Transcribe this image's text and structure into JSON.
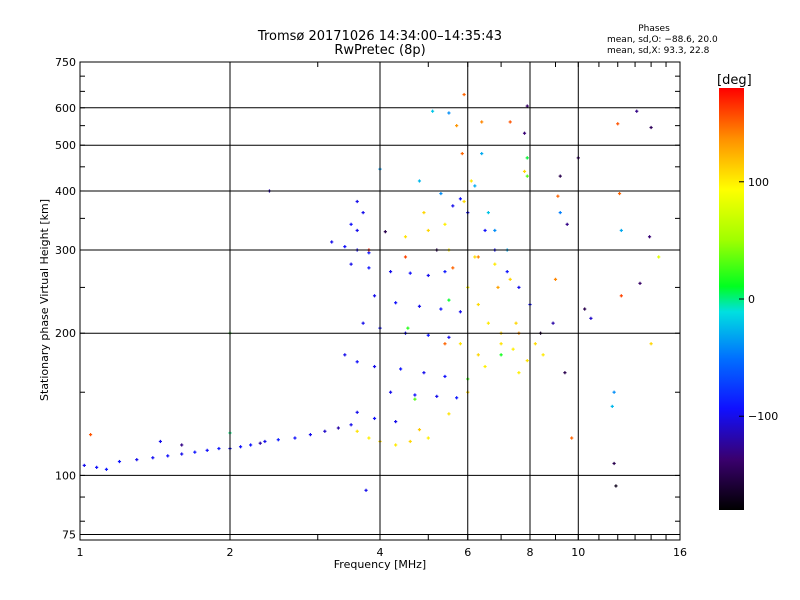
{
  "chart_data": {
    "type": "scatter",
    "title": "Tromsø 20171026 14:34:00–14:35:43",
    "subtitle": "RwPretec (8p)",
    "xlabel": "Frequency [MHz]",
    "ylabel": "Stationary phase Virtual Height [km]",
    "x_scale": "log",
    "y_scale": "log",
    "xlim": [
      1,
      16
    ],
    "ylim": [
      73,
      750
    ],
    "x_ticks": [
      1,
      2,
      4,
      6,
      8,
      10,
      16
    ],
    "y_ticks": [
      75,
      100,
      200,
      300,
      400,
      500,
      600,
      750
    ],
    "grid": true,
    "stats": {
      "header": "Phases",
      "line1": "mean, sd,O: −88.6, 20.0",
      "line2": "mean, sd,X:  93.3, 22.8"
    },
    "colorbar": {
      "label": "[deg]",
      "range": [
        -180,
        180
      ],
      "ticks": [
        {
          "value": 100,
          "label": "100"
        },
        {
          "value": 0,
          "label": "0"
        },
        {
          "value": -100,
          "label": "−100"
        }
      ]
    },
    "series": [
      {
        "points": [
          [
            1.02,
            105,
            -100
          ],
          [
            1.08,
            104,
            -95
          ],
          [
            1.13,
            103,
            -90
          ],
          [
            1.2,
            107,
            -92
          ],
          [
            1.3,
            108,
            -100
          ],
          [
            1.4,
            109,
            -98
          ],
          [
            1.5,
            110,
            -95
          ],
          [
            1.6,
            111,
            -100
          ],
          [
            1.7,
            112,
            -92
          ],
          [
            1.8,
            113,
            -95
          ],
          [
            1.9,
            114,
            -90
          ],
          [
            2.0,
            114,
            -100
          ],
          [
            2.1,
            115,
            -95
          ],
          [
            2.2,
            116,
            -92
          ],
          [
            2.35,
            118,
            -100
          ],
          [
            2.5,
            119,
            -88
          ],
          [
            2.7,
            120,
            -95
          ],
          [
            2.9,
            122,
            -100
          ],
          [
            3.1,
            124,
            -110
          ],
          [
            3.3,
            126,
            -120
          ],
          [
            3.5,
            128,
            -100
          ],
          [
            1.45,
            118,
            -100
          ],
          [
            1.6,
            116,
            -130
          ],
          [
            2.3,
            117,
            -120
          ]
        ]
      },
      {
        "points": [
          [
            3.2,
            312,
            -100
          ],
          [
            3.4,
            305,
            -95
          ],
          [
            3.6,
            300,
            -100
          ],
          [
            3.8,
            296,
            -90
          ],
          [
            3.5,
            340,
            -95
          ],
          [
            3.6,
            380,
            -100
          ],
          [
            3.5,
            280,
            -100
          ],
          [
            3.8,
            275,
            -92
          ],
          [
            4.2,
            270,
            -100
          ],
          [
            4.6,
            268,
            -95
          ],
          [
            5.0,
            265,
            -100
          ],
          [
            5.4,
            270,
            -90
          ],
          [
            3.9,
            240,
            -100
          ],
          [
            4.3,
            232,
            -95
          ],
          [
            4.8,
            228,
            -100
          ],
          [
            5.3,
            225,
            -92
          ],
          [
            5.8,
            222,
            -100
          ],
          [
            3.7,
            210,
            -100
          ],
          [
            4.0,
            205,
            -95
          ],
          [
            4.5,
            200,
            -100
          ],
          [
            5.0,
            198,
            -90
          ],
          [
            5.5,
            196,
            -100
          ],
          [
            3.4,
            180,
            -100
          ],
          [
            3.6,
            174,
            -95
          ],
          [
            3.9,
            170,
            -100
          ],
          [
            4.4,
            168,
            -92
          ],
          [
            4.9,
            165,
            -100
          ],
          [
            5.4,
            162,
            -95
          ],
          [
            4.2,
            150,
            -100
          ],
          [
            4.7,
            148,
            -95
          ],
          [
            5.2,
            147,
            -100
          ],
          [
            5.7,
            146,
            -90
          ],
          [
            3.6,
            136,
            -100
          ],
          [
            3.9,
            132,
            -95
          ],
          [
            4.3,
            130,
            -100
          ],
          [
            5.6,
            372,
            -100
          ],
          [
            5.8,
            385,
            -95
          ],
          [
            6.0,
            360,
            -100
          ],
          [
            6.5,
            330,
            -95
          ],
          [
            6.8,
            300,
            -100
          ],
          [
            7.2,
            270,
            -92
          ],
          [
            7.6,
            250,
            -100
          ],
          [
            8.0,
            230,
            -95
          ],
          [
            3.6,
            330,
            -100
          ],
          [
            3.7,
            360,
            -100
          ],
          [
            4.1,
            328,
            -150
          ],
          [
            5.2,
            300,
            -150
          ]
        ]
      },
      {
        "points": [
          [
            3.6,
            124,
            105
          ],
          [
            3.8,
            120,
            100
          ],
          [
            4.0,
            118,
            108
          ],
          [
            4.3,
            116,
            102
          ],
          [
            4.6,
            118,
            110
          ],
          [
            5.0,
            120,
            100
          ],
          [
            4.8,
            125,
            115
          ],
          [
            5.5,
            135,
            105
          ],
          [
            6.0,
            150,
            110
          ],
          [
            6.5,
            170,
            100
          ],
          [
            7.0,
            190,
            105
          ],
          [
            7.5,
            210,
            110
          ],
          [
            6.0,
            250,
            100
          ],
          [
            6.3,
            230,
            108
          ],
          [
            6.6,
            210,
            102
          ],
          [
            7.0,
            200,
            110
          ],
          [
            7.4,
            185,
            100
          ],
          [
            7.9,
            175,
            105
          ],
          [
            4.5,
            320,
            105
          ],
          [
            5.0,
            330,
            110
          ],
          [
            5.5,
            300,
            100
          ],
          [
            6.2,
            290,
            108
          ],
          [
            6.8,
            280,
            102
          ],
          [
            7.3,
            260,
            110
          ],
          [
            5.8,
            190,
            105
          ],
          [
            6.3,
            180,
            110
          ],
          [
            7.6,
            165,
            100
          ],
          [
            8.2,
            190,
            108
          ],
          [
            8.5,
            180,
            102
          ],
          [
            4.9,
            360,
            110
          ],
          [
            5.4,
            340,
            100
          ],
          [
            5.9,
            380,
            108
          ],
          [
            6.1,
            420,
            102
          ],
          [
            7.8,
            440,
            110
          ],
          [
            7.9,
            470,
            105
          ]
        ]
      },
      {
        "points": [
          [
            5.9,
            640,
            150
          ],
          [
            5.7,
            550,
            135
          ],
          [
            5.85,
            480,
            150
          ],
          [
            6.4,
            560,
            140
          ],
          [
            7.3,
            560,
            155
          ],
          [
            6.3,
            290,
            140
          ],
          [
            5.6,
            275,
            150
          ],
          [
            6.9,
            250,
            130
          ],
          [
            4.5,
            290,
            160
          ],
          [
            5.4,
            190,
            150
          ],
          [
            7.6,
            200,
            135
          ],
          [
            9.1,
            390,
            150
          ],
          [
            9.0,
            260,
            140
          ],
          [
            12.0,
            555,
            155
          ],
          [
            12.1,
            395,
            150
          ],
          [
            12.2,
            240,
            160
          ],
          [
            9.7,
            120,
            150
          ],
          [
            3.8,
            300,
            170
          ],
          [
            1.05,
            122,
            155
          ]
        ]
      },
      {
        "points": [
          [
            5.5,
            585,
            -40
          ],
          [
            6.2,
            410,
            -30
          ],
          [
            6.6,
            360,
            -20
          ],
          [
            6.8,
            330,
            -40
          ],
          [
            7.2,
            300,
            -30
          ],
          [
            9.2,
            360,
            -45
          ],
          [
            4.0,
            445,
            -35
          ],
          [
            4.8,
            420,
            -25
          ],
          [
            5.3,
            395,
            -40
          ],
          [
            5.1,
            590,
            -20
          ],
          [
            12.2,
            330,
            -30
          ],
          [
            11.8,
            150,
            -40
          ],
          [
            11.7,
            140,
            -25
          ],
          [
            6.4,
            480,
            -30
          ]
        ]
      },
      {
        "points": [
          [
            7.9,
            605,
            -140
          ],
          [
            7.8,
            530,
            -135
          ],
          [
            9.2,
            430,
            -150
          ],
          [
            10.0,
            470,
            -140
          ],
          [
            13.1,
            590,
            -130
          ],
          [
            14.0,
            545,
            -145
          ],
          [
            13.3,
            255,
            -140
          ],
          [
            13.9,
            320,
            -135
          ],
          [
            11.9,
            95,
            -170
          ],
          [
            10.3,
            225,
            -150
          ],
          [
            8.4,
            200,
            -160
          ],
          [
            9.4,
            165,
            -150
          ],
          [
            8.9,
            210,
            -120
          ],
          [
            2.4,
            400,
            -120
          ],
          [
            9.5,
            340,
            -130
          ],
          [
            10.6,
            215,
            -110
          ],
          [
            11.8,
            106,
            -150
          ]
        ]
      },
      {
        "points": [
          [
            2.0,
            200,
            20
          ],
          [
            4.55,
            205,
            20
          ],
          [
            5.5,
            235,
            10
          ],
          [
            7.0,
            180,
            15
          ],
          [
            6.0,
            160,
            25
          ],
          [
            4.7,
            145,
            30
          ],
          [
            7.9,
            470,
            5
          ],
          [
            7.9,
            430,
            30
          ],
          [
            2.0,
            123,
            0
          ],
          [
            14.5,
            290,
            80
          ],
          [
            14.0,
            190,
            110
          ],
          [
            3.75,
            93,
            -100
          ]
        ]
      }
    ]
  }
}
